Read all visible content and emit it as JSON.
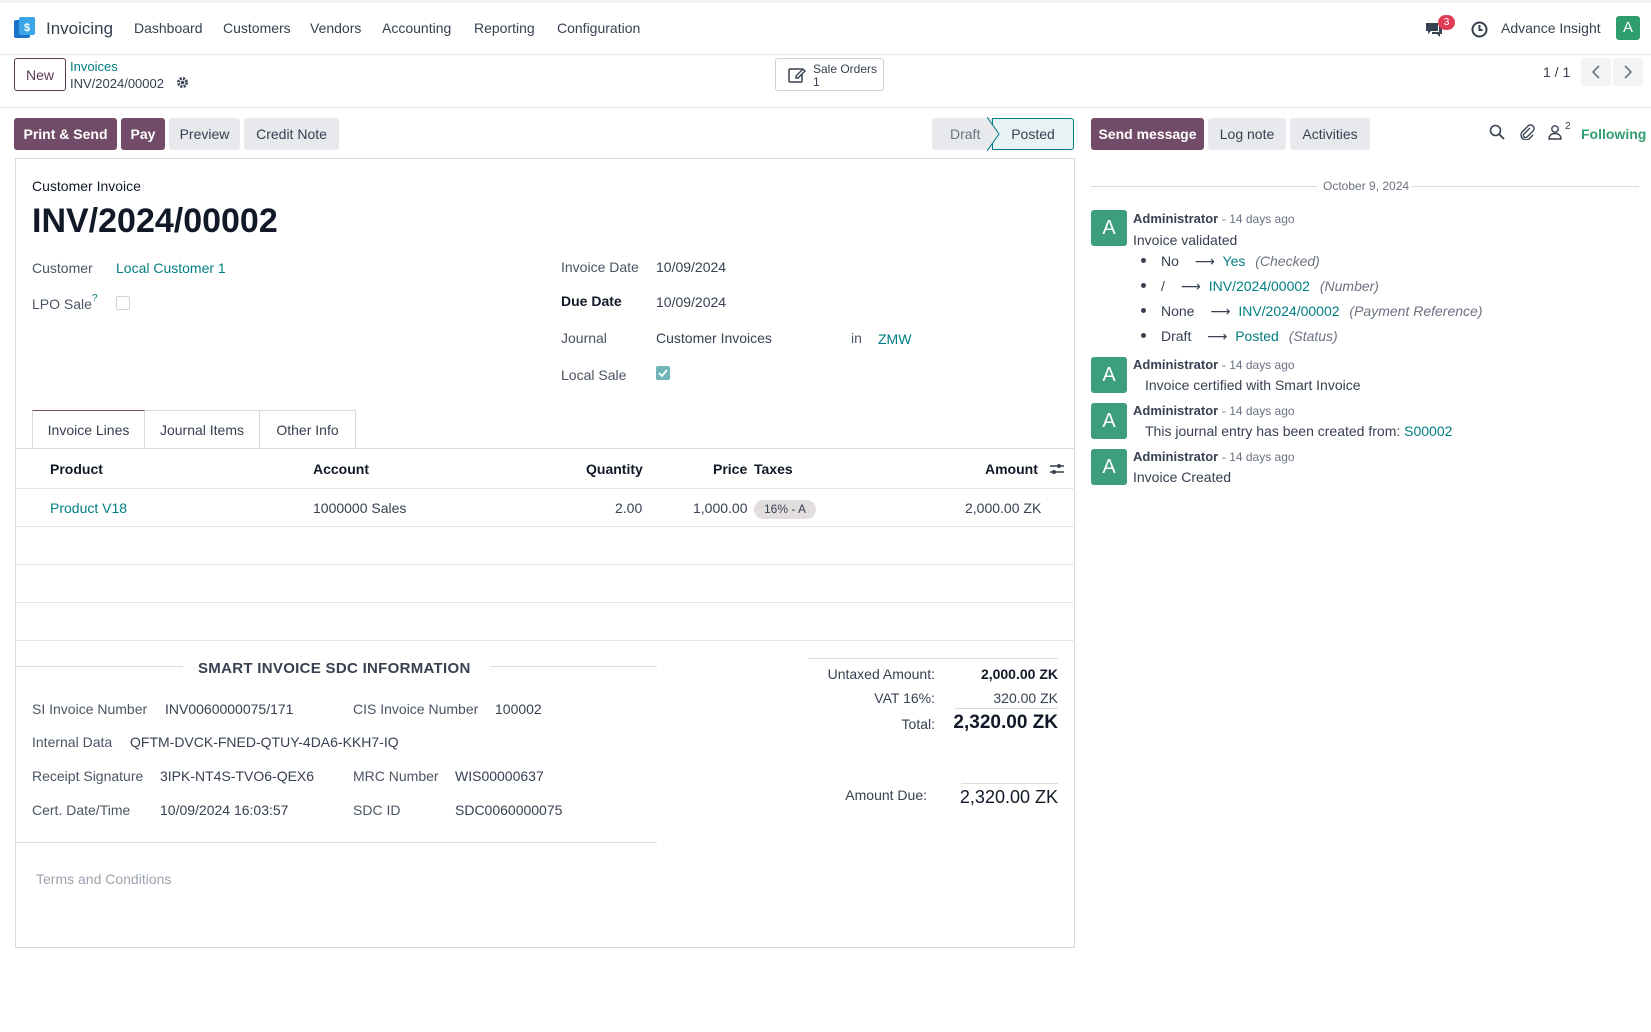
{
  "navbar": {
    "app_name": "Invoicing",
    "menu": [
      "Dashboard",
      "Customers",
      "Vendors",
      "Accounting",
      "Reporting",
      "Configuration"
    ],
    "messages_count": "3",
    "company": "Advance Insight",
    "user_initial": "A"
  },
  "control_panel": {
    "new_label": "New",
    "breadcrumb_parent": "Invoices",
    "breadcrumb_current": "INV/2024/00002",
    "smart_button": {
      "label": "Sale Orders",
      "count": "1"
    },
    "pager": "1 / 1"
  },
  "actions": {
    "print_send": "Print & Send",
    "pay": "Pay",
    "preview": "Preview",
    "credit_note": "Credit Note"
  },
  "status": {
    "draft": "Draft",
    "posted": "Posted"
  },
  "form": {
    "type_label": "Customer Invoice",
    "number": "INV/2024/00002",
    "customer_label": "Customer",
    "customer_value": "Local Customer 1",
    "lpo_label": "LPO Sale",
    "lpo_help": "?",
    "invoice_date_label": "Invoice Date",
    "invoice_date": "10/09/2024",
    "due_date_label": "Due Date",
    "due_date": "10/09/2024",
    "journal_label": "Journal",
    "journal_value": "Customer Invoices",
    "in_label": "in",
    "currency": "ZMW",
    "local_sale_label": "Local Sale"
  },
  "tabs": [
    "Invoice Lines",
    "Journal Items",
    "Other Info"
  ],
  "lines": {
    "headers": {
      "product": "Product",
      "account": "Account",
      "quantity": "Quantity",
      "price": "Price",
      "taxes": "Taxes",
      "amount": "Amount"
    },
    "rows": [
      {
        "product": "Product V18",
        "account": "1000000 Sales",
        "quantity": "2.00",
        "price": "1,000.00",
        "tax": "16% - A",
        "amount": "2,000.00 ZK"
      }
    ]
  },
  "sdc": {
    "title": "SMART INVOICE SDC INFORMATION",
    "si_invoice_label": "SI Invoice Number",
    "si_invoice_value": "INV0060000075/171",
    "cis_invoice_label": "CIS Invoice Number",
    "cis_invoice_value": "100002",
    "internal_data_label": "Internal Data",
    "internal_data_value": "QFTM-DVCK-FNED-QTUY-4DA6-KKH7-IQ",
    "receipt_sig_label": "Receipt Signature",
    "receipt_sig_value": "3IPK-NT4S-TVO6-QEX6",
    "mrc_label": "MRC Number",
    "mrc_value": "WIS00000637",
    "cert_label": "Cert. Date/Time",
    "cert_value": "10/09/2024 16:03:57",
    "sdc_id_label": "SDC ID",
    "sdc_id_value": "SDC0060000075"
  },
  "totals": {
    "untaxed_label": "Untaxed Amount:",
    "untaxed_value": "2,000.00 ZK",
    "vat_label": "VAT 16%:",
    "vat_value": "320.00 ZK",
    "total_label": "Total:",
    "total_value": "2,320.00 ZK",
    "due_label": "Amount Due:",
    "due_value": "2,320.00 ZK"
  },
  "terms_placeholder": "Terms and Conditions",
  "chatter": {
    "send_message": "Send message",
    "log_note": "Log note",
    "activities": "Activities",
    "followers_count": "2",
    "following": "Following",
    "date": "October 9, 2024",
    "messages": [
      {
        "author": "Administrator",
        "time": "- 14 days ago",
        "body": "Invoice validated",
        "changes": [
          {
            "old": "No",
            "new": "Yes",
            "field": "(Checked)"
          },
          {
            "old": "/",
            "new": "INV/2024/00002",
            "field": "(Number)"
          },
          {
            "old": "None",
            "new": "INV/2024/00002",
            "field": "(Payment Reference)"
          },
          {
            "old": "Draft",
            "new": "Posted",
            "field": "(Status)"
          }
        ]
      },
      {
        "author": "Administrator",
        "time": "- 14 days ago",
        "body": "Invoice certified with Smart Invoice"
      },
      {
        "author": "Administrator",
        "time": "- 14 days ago",
        "body": "This journal entry has been created from:",
        "link": "S00002"
      },
      {
        "author": "Administrator",
        "time": "- 14 days ago",
        "body": "Invoice Created"
      }
    ],
    "avatar_initial": "A"
  },
  "colors": {
    "primary": "#714b67",
    "link": "#017e84",
    "avatar": "#3c9e7d"
  }
}
